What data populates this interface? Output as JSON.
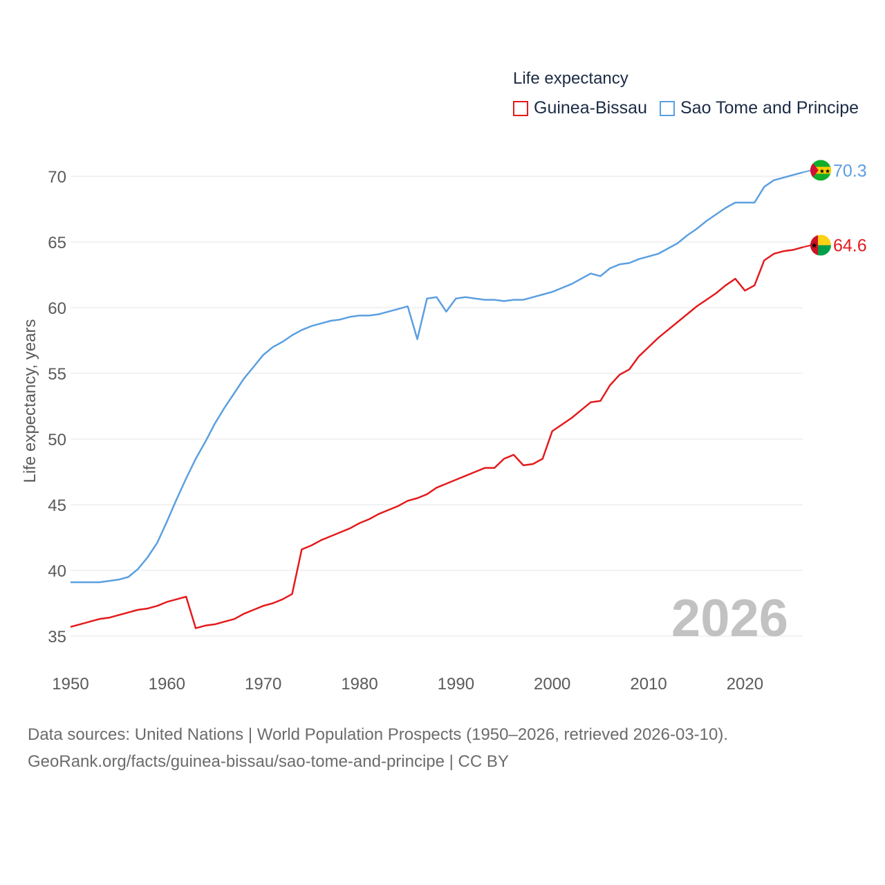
{
  "legend": {
    "title": "Life expectancy"
  },
  "footer": {
    "line1": "Data sources: United Nations | World Population Prospects (1950–2026, retrieved 2026-03-10).",
    "line2": "GeoRank.org/facts/guinea-bissau/sao-tome-and-principe | CC BY"
  },
  "chart_data": {
    "type": "line",
    "title": "Life expectancy",
    "xlabel": "",
    "ylabel": "Life expectancy, years",
    "xlim": [
      1950,
      2026
    ],
    "ylim": [
      33,
      72
    ],
    "x_ticks": [
      1950,
      1960,
      1970,
      1980,
      1990,
      2000,
      2010,
      2020
    ],
    "y_ticks": [
      35,
      40,
      45,
      50,
      55,
      60,
      65,
      70
    ],
    "year_label": "2026",
    "grid": true,
    "legend_position": "top-right",
    "series": [
      {
        "name": "Guinea-Bissau",
        "color": "#e31a1c",
        "end_label": "64.6",
        "flag": "guinea-bissau-flag",
        "x": [
          1950,
          1951,
          1952,
          1953,
          1954,
          1955,
          1956,
          1957,
          1958,
          1959,
          1960,
          1961,
          1962,
          1963,
          1964,
          1965,
          1966,
          1967,
          1968,
          1969,
          1970,
          1971,
          1972,
          1973,
          1974,
          1975,
          1976,
          1977,
          1978,
          1979,
          1980,
          1981,
          1982,
          1983,
          1984,
          1985,
          1986,
          1987,
          1988,
          1989,
          1990,
          1991,
          1992,
          1993,
          1994,
          1995,
          1996,
          1997,
          1998,
          1999,
          2000,
          2001,
          2002,
          2003,
          2004,
          2005,
          2006,
          2007,
          2008,
          2009,
          2010,
          2011,
          2012,
          2013,
          2014,
          2015,
          2016,
          2017,
          2018,
          2019,
          2020,
          2021,
          2022,
          2023,
          2024,
          2025,
          2026
        ],
        "values": [
          35.7,
          35.9,
          36.1,
          36.3,
          36.4,
          36.6,
          36.8,
          37.0,
          37.1,
          37.3,
          37.6,
          37.8,
          38.0,
          35.6,
          35.8,
          35.9,
          36.1,
          36.3,
          36.7,
          37.0,
          37.3,
          37.5,
          37.8,
          38.2,
          41.6,
          41.9,
          42.3,
          42.6,
          42.9,
          43.2,
          43.6,
          43.9,
          44.3,
          44.6,
          44.9,
          45.3,
          45.5,
          45.8,
          46.3,
          46.6,
          46.9,
          47.2,
          47.5,
          47.8,
          47.8,
          48.5,
          48.8,
          48.0,
          48.1,
          48.5,
          50.6,
          51.1,
          51.6,
          52.2,
          52.8,
          52.9,
          54.1,
          54.9,
          55.3,
          56.3,
          57.0,
          57.7,
          58.3,
          58.9,
          59.5,
          60.1,
          60.6,
          61.1,
          61.7,
          62.2,
          61.3,
          61.7,
          63.6,
          64.1,
          64.3,
          64.4,
          64.6
        ]
      },
      {
        "name": "Sao Tome and Principe",
        "color": "#5b9fe0",
        "end_label": "70.3",
        "flag": "sao-tome-and-principe-flag",
        "x": [
          1950,
          1951,
          1952,
          1953,
          1954,
          1955,
          1956,
          1957,
          1958,
          1959,
          1960,
          1961,
          1962,
          1963,
          1964,
          1965,
          1966,
          1967,
          1968,
          1969,
          1970,
          1971,
          1972,
          1973,
          1974,
          1975,
          1976,
          1977,
          1978,
          1979,
          1980,
          1981,
          1982,
          1983,
          1984,
          1985,
          1986,
          1987,
          1988,
          1989,
          1990,
          1991,
          1992,
          1993,
          1994,
          1995,
          1996,
          1997,
          1998,
          1999,
          2000,
          2001,
          2002,
          2003,
          2004,
          2005,
          2006,
          2007,
          2008,
          2009,
          2010,
          2011,
          2012,
          2013,
          2014,
          2015,
          2016,
          2017,
          2018,
          2019,
          2020,
          2021,
          2022,
          2023,
          2024,
          2025,
          2026
        ],
        "values": [
          39.1,
          39.1,
          39.1,
          39.1,
          39.2,
          39.3,
          39.5,
          40.1,
          41.0,
          42.1,
          43.7,
          45.4,
          47.0,
          48.5,
          49.8,
          51.2,
          52.4,
          53.5,
          54.6,
          55.5,
          56.4,
          57.0,
          57.4,
          57.9,
          58.3,
          58.6,
          58.8,
          59.0,
          59.1,
          59.3,
          59.4,
          59.4,
          59.5,
          59.7,
          59.9,
          60.1,
          57.6,
          60.7,
          60.8,
          59.7,
          60.7,
          60.8,
          60.7,
          60.6,
          60.6,
          60.5,
          60.6,
          60.6,
          60.8,
          61.0,
          61.2,
          61.5,
          61.8,
          62.2,
          62.6,
          62.4,
          63.0,
          63.3,
          63.4,
          63.7,
          63.9,
          64.1,
          64.5,
          64.9,
          65.5,
          66.0,
          66.6,
          67.1,
          67.6,
          68.0,
          68.0,
          68.0,
          69.2,
          69.7,
          69.9,
          70.1,
          70.3
        ]
      }
    ]
  }
}
